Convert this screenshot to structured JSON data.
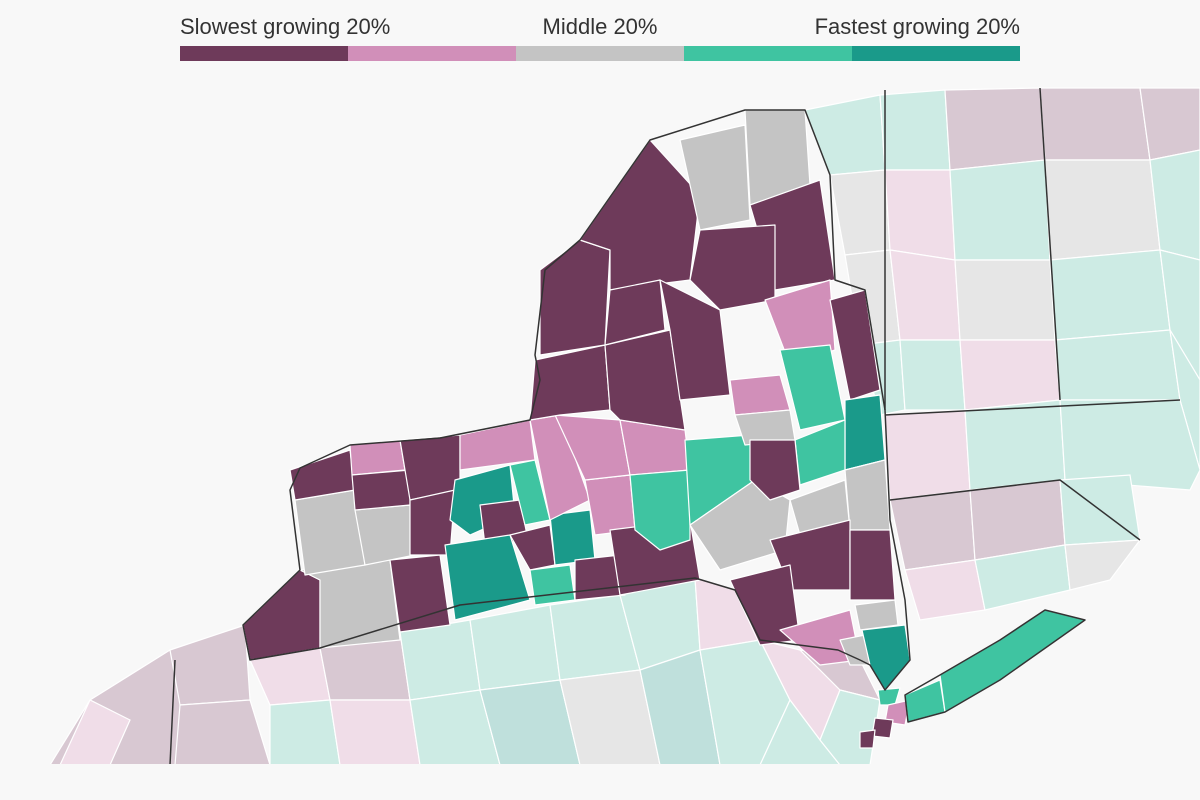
{
  "legend": {
    "label_left": "Slowest growing 20%",
    "label_center": "Middle 20%",
    "label_right": "Fastest growing 20%",
    "bins": [
      {
        "name": "slowest",
        "color": "#6e3a5a"
      },
      {
        "name": "slow",
        "color": "#d18fb9"
      },
      {
        "name": "middle",
        "color": "#c4c4c4"
      },
      {
        "name": "fast",
        "color": "#3fc4a1"
      },
      {
        "name": "fastest",
        "color": "#1a9a8a"
      }
    ]
  },
  "colors": {
    "background": "#f8f8f8",
    "neighbor_slowest": "#d8c8d2",
    "neighbor_slow": "#f0dde8",
    "neighbor_middle": "#e6e6e6",
    "neighbor_fast": "#cdebe4",
    "neighbor_fastest": "#bfe0dc",
    "county_border": "#ffffff",
    "state_border": "#333333"
  }
}
